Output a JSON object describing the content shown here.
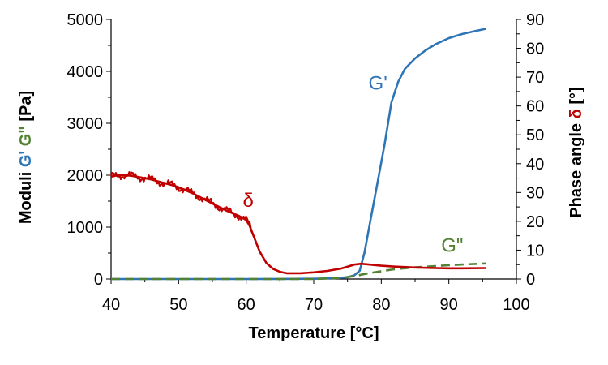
{
  "chart_data": {
    "type": "line",
    "xlabel": "Temperature  [°C]",
    "ylabel_parts": [
      {
        "text": "Moduli ",
        "color": "#000000"
      },
      {
        "text": "G'",
        "color": "#2e75b6"
      },
      {
        "text": " ",
        "color": "#000000"
      },
      {
        "text": "G\"",
        "color": "#548235"
      },
      {
        "text": "  [Pa]",
        "color": "#000000"
      }
    ],
    "y2label_parts": [
      {
        "text": "Phase angle ",
        "color": "#000000"
      },
      {
        "text": "δ",
        "color": "#c00000"
      },
      {
        "text": " [°]",
        "color": "#000000"
      }
    ],
    "xlim": [
      40,
      100
    ],
    "ylim": [
      0,
      5000
    ],
    "y2lim": [
      0,
      90
    ],
    "x_ticks": [
      40,
      50,
      60,
      70,
      80,
      90,
      100
    ],
    "y_ticks": [
      0,
      1000,
      2000,
      3000,
      4000,
      5000
    ],
    "y2_ticks": [
      0,
      10,
      20,
      30,
      40,
      50,
      60,
      70,
      80,
      90
    ],
    "grid": false,
    "legend": "none",
    "series": [
      {
        "label": "G'",
        "axis": "left",
        "color": "#2e75b6",
        "dash": "solid",
        "label_at": [
          79.5,
          3650
        ],
        "x": [
          40,
          50,
          60,
          65,
          70,
          73,
          75,
          76,
          76.8,
          77.5,
          78.5,
          79.5,
          80.5,
          81.5,
          82.5,
          83.5,
          85,
          86.5,
          88,
          90,
          92,
          94,
          95.5
        ],
        "y": [
          0,
          0,
          0,
          2,
          5,
          15,
          35,
          70,
          160,
          500,
          1200,
          1900,
          2600,
          3400,
          3800,
          4050,
          4250,
          4400,
          4520,
          4640,
          4720,
          4780,
          4820
        ]
      },
      {
        "label": "G\"",
        "axis": "left",
        "color": "#548235",
        "dash": "dashed",
        "label_at": [
          90.5,
          520
        ],
        "x": [
          40,
          50,
          60,
          70,
          74,
          76,
          78,
          80,
          82,
          85,
          88,
          90,
          92,
          95.5
        ],
        "y": [
          0,
          0,
          0,
          0,
          20,
          55,
          110,
          150,
          190,
          225,
          250,
          265,
          280,
          300
        ]
      },
      {
        "label": "δ",
        "axis": "right",
        "color": "#c00000",
        "dash": "solid",
        "label_at": [
          60.3,
          25
        ],
        "x": [
          40,
          41,
          42,
          43,
          44,
          45,
          46,
          47,
          48,
          49,
          50,
          51,
          52,
          53,
          54,
          55,
          56,
          57,
          58,
          59,
          60,
          60.5,
          61,
          61.5,
          62,
          62.5,
          63,
          64,
          65,
          66,
          68,
          70,
          72,
          74,
          75,
          76,
          77,
          78,
          80,
          82,
          85,
          88,
          90,
          92,
          95.5
        ],
        "y": [
          35.5,
          36.0,
          36.0,
          35.8,
          35.4,
          35.0,
          34.5,
          33.8,
          33.2,
          32.6,
          31.8,
          30.8,
          29.8,
          28.6,
          27.4,
          26.2,
          25.0,
          23.8,
          22.8,
          21.8,
          20.5,
          18.5,
          15.5,
          12.5,
          9.5,
          7.5,
          5.5,
          3.5,
          2.5,
          2.0,
          2.0,
          2.3,
          2.8,
          3.6,
          4.3,
          5.0,
          5.3,
          5.1,
          4.6,
          4.3,
          4.0,
          3.8,
          3.7,
          3.7,
          3.8
        ]
      }
    ]
  }
}
